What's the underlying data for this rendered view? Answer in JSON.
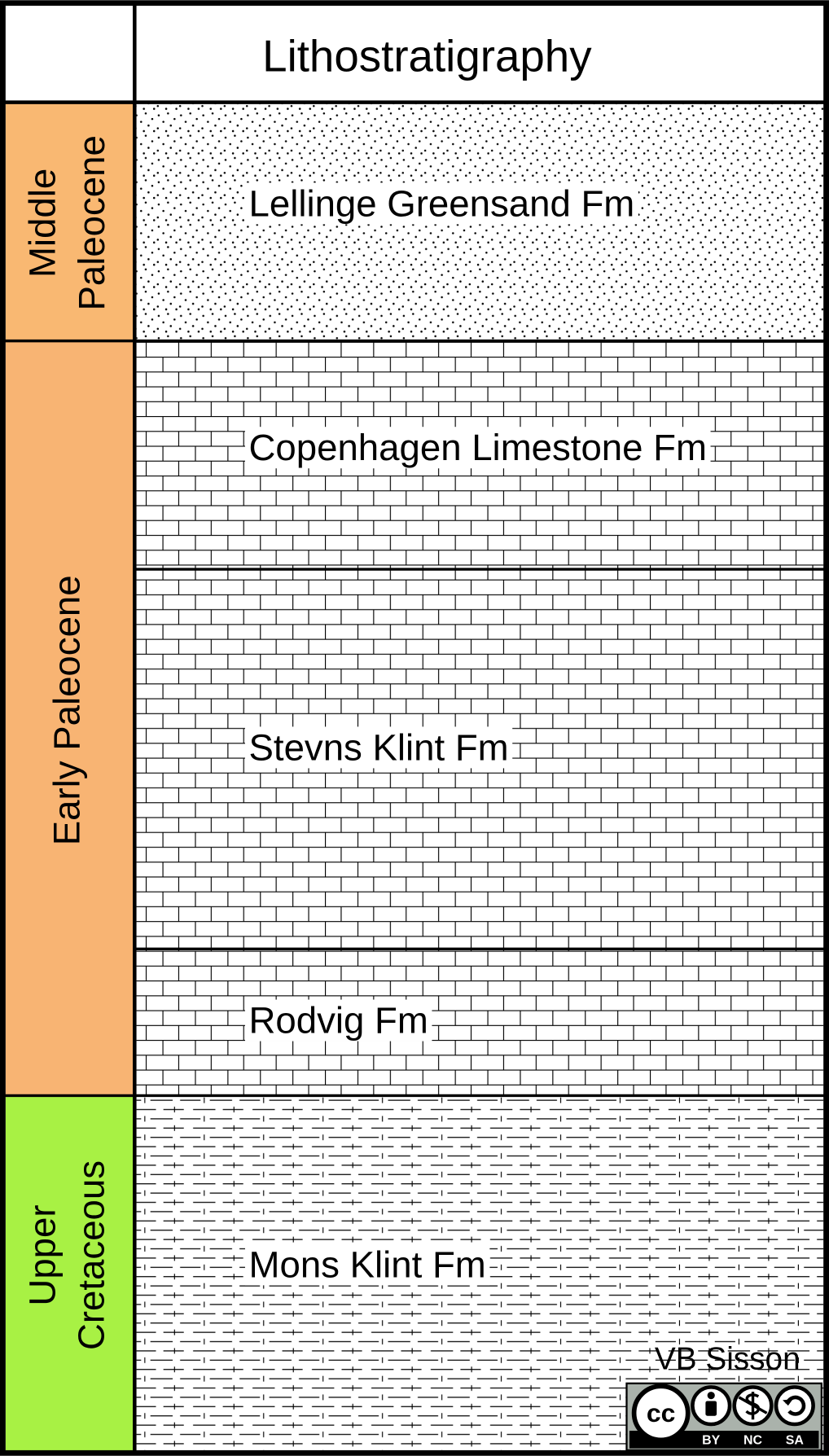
{
  "header": {
    "title": "Lithostratigraphy"
  },
  "ages": [
    {
      "lines": [
        "Middle",
        "Paleocene"
      ]
    },
    {
      "lines": [
        "Early Paleocene"
      ]
    },
    {
      "lines": [
        "Upper",
        "Cretaceous"
      ]
    }
  ],
  "formations": [
    {
      "label": "Lellinge Greensand Fm"
    },
    {
      "label": "Copenhagen Limestone Fm"
    },
    {
      "label": "Stevns Klint Fm"
    },
    {
      "label": "Rodvig Fm"
    },
    {
      "label": "Mons Klint Fm"
    }
  ],
  "credit": "VB Sisson",
  "license": {
    "icon": "cc",
    "badges": [
      "BY",
      "NC",
      "SA"
    ]
  }
}
